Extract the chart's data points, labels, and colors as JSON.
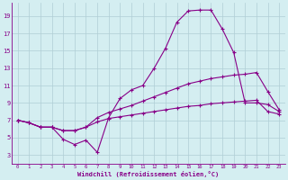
{
  "xlabel": "Windchill (Refroidissement éolien,°C)",
  "background_color": "#d4eef1",
  "grid_color": "#b0cdd5",
  "line_color": "#880088",
  "x_ticks": [
    0,
    1,
    2,
    3,
    4,
    5,
    6,
    7,
    8,
    9,
    10,
    11,
    12,
    13,
    14,
    15,
    16,
    17,
    18,
    19,
    20,
    21,
    22,
    23
  ],
  "y_ticks": [
    3,
    5,
    7,
    9,
    11,
    13,
    15,
    17,
    19
  ],
  "ylim": [
    2.0,
    20.5
  ],
  "xlim": [
    -0.5,
    23.5
  ],
  "line1_x": [
    0,
    1,
    2,
    3,
    4,
    5,
    6,
    7,
    8,
    9,
    10,
    11,
    12,
    13,
    14,
    15,
    16,
    17,
    18,
    19,
    20,
    21,
    22,
    23
  ],
  "line1_y": [
    7.0,
    6.7,
    6.2,
    6.2,
    4.8,
    4.2,
    4.7,
    3.3,
    7.3,
    9.5,
    10.5,
    11.0,
    13.0,
    15.3,
    18.3,
    19.6,
    19.7,
    19.7,
    17.5,
    14.8,
    9.0,
    9.0,
    8.8,
    8.0
  ],
  "line2_x": [
    0,
    1,
    2,
    3,
    4,
    5,
    6,
    7,
    8,
    9,
    10,
    11,
    12,
    13,
    14,
    15,
    16,
    17,
    18,
    19,
    20,
    21,
    22,
    23
  ],
  "line2_y": [
    7.0,
    6.7,
    6.2,
    6.2,
    5.8,
    5.8,
    6.2,
    7.3,
    7.9,
    8.3,
    8.7,
    9.2,
    9.7,
    10.2,
    10.7,
    11.2,
    11.5,
    11.8,
    12.0,
    12.2,
    12.3,
    12.5,
    10.3,
    8.2
  ],
  "line3_x": [
    0,
    1,
    2,
    3,
    4,
    5,
    6,
    7,
    8,
    9,
    10,
    11,
    12,
    13,
    14,
    15,
    16,
    17,
    18,
    19,
    20,
    21,
    22,
    23
  ],
  "line3_y": [
    7.0,
    6.7,
    6.2,
    6.2,
    5.8,
    5.8,
    6.2,
    6.8,
    7.2,
    7.4,
    7.6,
    7.8,
    8.0,
    8.2,
    8.4,
    8.6,
    8.7,
    8.9,
    9.0,
    9.1,
    9.2,
    9.3,
    8.0,
    7.7
  ]
}
